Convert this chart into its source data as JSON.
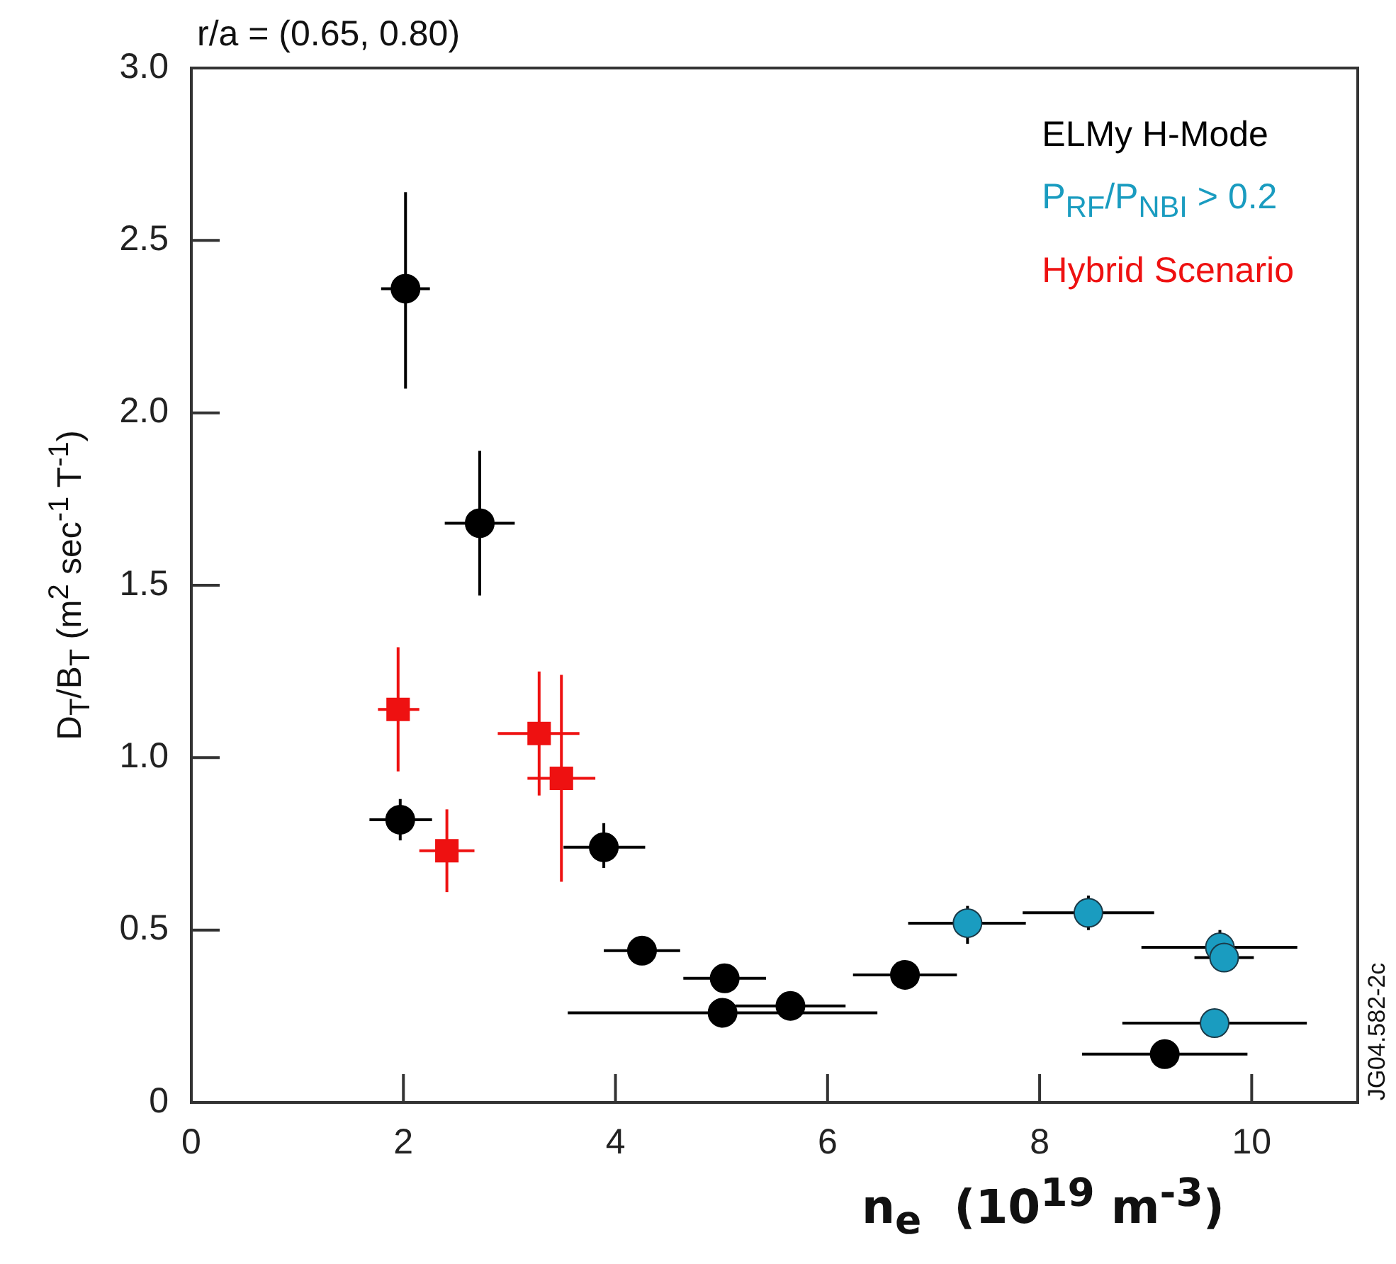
{
  "chart_data": {
    "type": "scatter",
    "title": "r/a = (0.65, 0.80)",
    "xlabel": "n$_{e}$  (10$^{19}$ m$^{-3}$)",
    "ylabel": "D$_{T}$/B$_{T}$ (m$^{2}$ sec$^{-1}$ T$^{-1}$)",
    "xlim": [
      0,
      11
    ],
    "xticks": [
      0,
      2,
      4,
      6,
      8,
      10
    ],
    "ylim": [
      0,
      3
    ],
    "yticks": [
      {
        "value": 0,
        "label": "0"
      },
      0.5,
      {
        "value": 1,
        "label": "1.0"
      },
      1.5,
      {
        "value": 2,
        "label": "2.0"
      },
      2.5,
      {
        "value": 3,
        "label": "3.0"
      }
    ],
    "grid": false,
    "legend": "top right",
    "annotations": [
      "JG04.582-2c"
    ],
    "series": [
      {
        "name": "ELMy H-Mode",
        "color": "#000000",
        "marker": "circle",
        "x": [
          2.02,
          2.72,
          1.97,
          3.89,
          4.25,
          5.03,
          5.01,
          5.65,
          6.73,
          9.18
        ],
        "values": [
          2.36,
          1.68,
          0.82,
          0.74,
          0.44,
          0.36,
          0.26,
          0.28,
          0.37,
          0.14
        ],
        "errors": [
          [
            2.07,
            2.64
          ],
          [
            1.47,
            1.89
          ],
          [
            0.76,
            0.88
          ],
          [
            0.68,
            0.81
          ],
          null,
          null,
          null,
          null,
          null,
          null
        ],
        "xerrors": [
          [
            1.79,
            2.25
          ],
          [
            2.39,
            3.05
          ],
          [
            1.68,
            2.27
          ],
          [
            3.51,
            4.28
          ],
          [
            3.89,
            4.61
          ],
          [
            4.64,
            5.42
          ],
          [
            3.55,
            6.47
          ],
          [
            5.13,
            6.17
          ],
          [
            6.24,
            7.22
          ],
          [
            8.4,
            9.96
          ]
        ]
      },
      {
        "name": "P$_{RF}$/P$_{NBI}$ > 0.2",
        "color": "#1a9cc0",
        "marker": "circle",
        "x": [
          7.32,
          8.46,
          9.7,
          9.74,
          9.65
        ],
        "values": [
          0.52,
          0.55,
          0.45,
          0.42,
          0.23
        ],
        "errors": [
          [
            0.46,
            0.57
          ],
          [
            0.5,
            0.6
          ],
          0.05,
          null,
          null
        ],
        "xerrors": [
          [
            6.76,
            7.87
          ],
          [
            7.84,
            9.08
          ],
          [
            8.96,
            10.43
          ],
          [
            9.46,
            10.02
          ],
          [
            8.78,
            10.52
          ]
        ]
      },
      {
        "name": "Hybrid Scenario",
        "color": "#ee1111",
        "marker": "square",
        "x": [
          1.95,
          2.41,
          3.28,
          3.49
        ],
        "values": [
          1.14,
          0.73,
          1.07,
          0.94
        ],
        "errors": [
          [
            0.96,
            1.32
          ],
          [
            0.61,
            0.85
          ],
          [
            0.89,
            1.25
          ],
          [
            0.64,
            1.24
          ]
        ],
        "xerrors": [
          [
            1.76,
            2.15
          ],
          [
            2.15,
            2.67
          ],
          [
            2.89,
            3.66
          ],
          [
            3.17,
            3.81
          ]
        ]
      }
    ]
  }
}
